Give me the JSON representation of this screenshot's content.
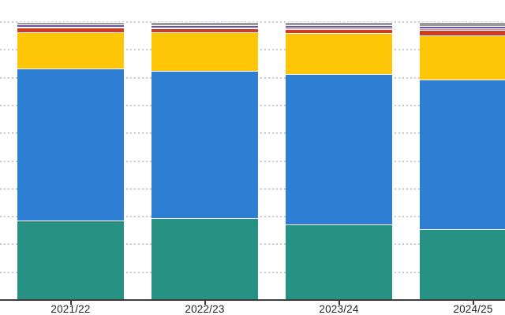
{
  "chart_data": {
    "type": "bar",
    "subtype": "stacked-100-percent-column",
    "title": "",
    "xlabel": "",
    "ylabel": "",
    "ylim": [
      0,
      100
    ],
    "grid": "dotted horizontal lines every 10%",
    "legend_position": "none-visible (cropped out of frame)",
    "axis_note": "y-axis tick labels cropped off left edge; bars clipped at top gridline (100%) and right edge",
    "categories": [
      "2021/22",
      "2022/23",
      "2023/24",
      "2024/25"
    ],
    "stack_order": "bottom-to-top",
    "series": [
      {
        "name": "teal-segment",
        "color": "#279184",
        "values": [
          28.6,
          29.5,
          27.1,
          25.2
        ]
      },
      {
        "name": "blue-segment",
        "color": "#2e7fd3",
        "values": [
          54.9,
          52.8,
          53.8,
          53.6
        ]
      },
      {
        "name": "yellow-segment",
        "color": "#ffc608",
        "values": [
          13.2,
          13.9,
          14.7,
          15.7
        ]
      },
      {
        "name": "red-segment",
        "color": "#d03b24",
        "values": [
          1.5,
          1.3,
          1.5,
          1.9
        ]
      },
      {
        "name": "pink-segment",
        "color": "#e583ad",
        "values": [
          0.3,
          0.3,
          0.3,
          0.45
        ]
      },
      {
        "name": "purple-segment",
        "color": "#6b51a1",
        "values": [
          0.9,
          0.9,
          0.9,
          0.85
        ]
      },
      {
        "name": "gray-segment",
        "color": "#9b999e",
        "values": [
          0.9,
          1.1,
          1.2,
          1.5
        ]
      }
    ]
  },
  "colors": {
    "background": "#ffffff",
    "gridline": "#c9c9c9",
    "axis": "#3d3d3d",
    "label_text": "#252423",
    "segment_separator": "#ffffff"
  }
}
